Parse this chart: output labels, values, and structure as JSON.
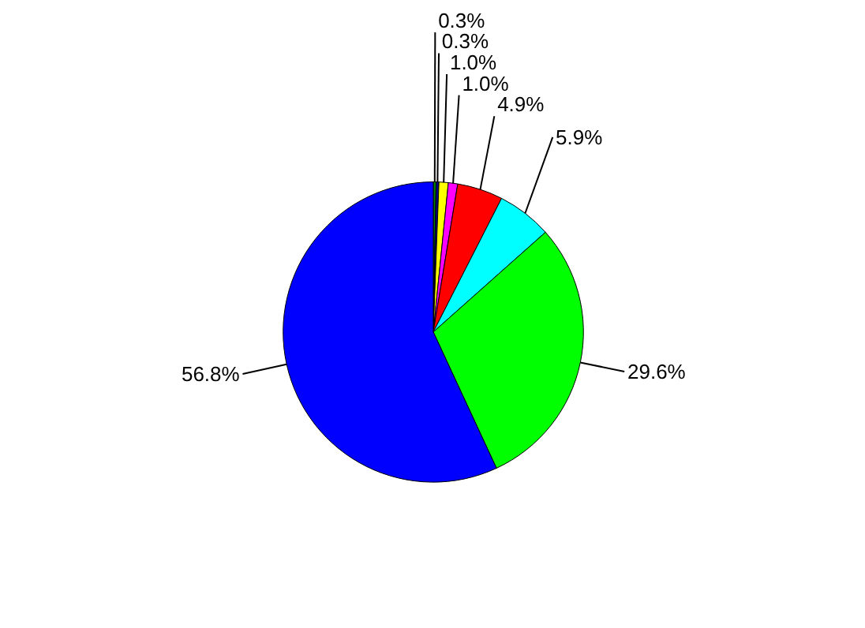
{
  "chart_data": {
    "type": "pie",
    "categories": [
      null,
      null,
      null,
      null,
      null,
      null,
      null,
      null
    ],
    "values": [
      0.3,
      0.3,
      1.0,
      1.0,
      4.9,
      5.9,
      29.6,
      56.8
    ],
    "colors": [
      "#008000",
      "#000080",
      "#ffff00",
      "#ff00ff",
      "#ff0000",
      "#00ffff",
      "#00ff00",
      "#0000ff"
    ],
    "value_labels": [
      "0.3%",
      "0.3%",
      "1.0%",
      "1.0%",
      "4.9%",
      "5.9%",
      "29.6%",
      "56.8%"
    ]
  }
}
